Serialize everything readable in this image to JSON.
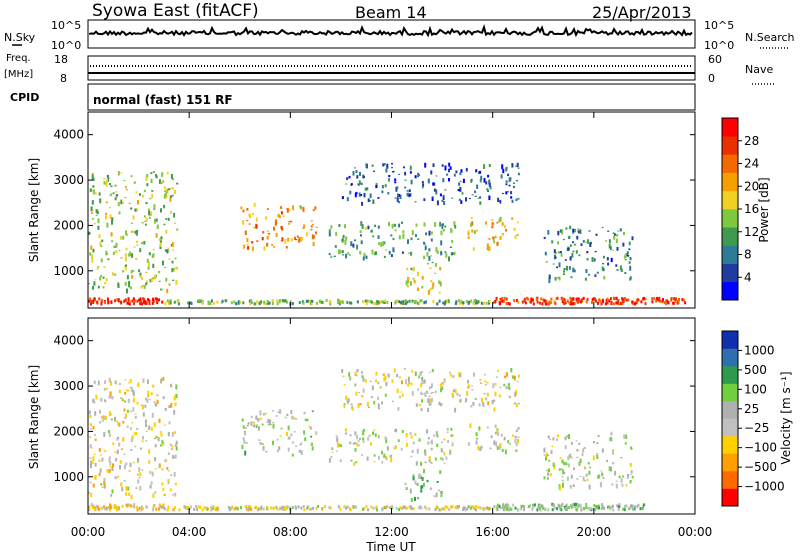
{
  "header": {
    "station": "Syowa East (fitACF)",
    "beam": "Beam 14",
    "date": "25/Apr/2013"
  },
  "status_panels": {
    "nsky_label": "N.Sky",
    "nsearch_label": "N.Search",
    "nsky_ticks": [
      "10^5",
      "10^0"
    ],
    "nsearch_ticks": [
      "10^5",
      "10^0"
    ],
    "freq_label": "Freq.",
    "freq_unit": "[MHz]",
    "freq_ticks": [
      "18",
      "8"
    ],
    "nave_label": "Nave",
    "nave_ticks": [
      "60",
      "0"
    ],
    "cpid_label": "CPID",
    "cpid_value": "normal (fast) 151 RF"
  },
  "colors": {
    "power_scale": [
      "#0000ff",
      "#203c9e",
      "#2e7b96",
      "#3f9a4e",
      "#7fc840",
      "#f0d020",
      "#f6a000",
      "#f46a00",
      "#e83000",
      "#ff0000"
    ],
    "velocity_scale": [
      "#ff0000",
      "#ff6a00",
      "#ffa000",
      "#ffd000",
      "#c0c0c0",
      "#b0b0b0",
      "#70d040",
      "#2e9a4e",
      "#2e6fae",
      "#1030b0"
    ]
  },
  "chart_data": [
    {
      "type": "heatmap",
      "name": "power-panel",
      "ylabel": "Slant Range [km]",
      "yticks": [
        "4000",
        "3000",
        "2000",
        "1000"
      ],
      "ylim": [
        180,
        4500
      ],
      "xticks": [
        "00:00",
        "04:00",
        "08:00",
        "12:00",
        "16:00",
        "20:00",
        "00:00"
      ],
      "colorbar_label": "Power [dB]",
      "colorbar_ticks": [
        "28",
        "24",
        "20",
        "16",
        "12",
        "8",
        "4"
      ],
      "zlim": [
        0,
        30
      ],
      "regions": [
        {
          "t": [
            0.0,
            3.0
          ],
          "r": [
            300,
            420
          ],
          "z": 28
        },
        {
          "t": [
            16.0,
            23.6
          ],
          "r": [
            300,
            430
          ],
          "z": 26
        },
        {
          "t": [
            3.0,
            16.0
          ],
          "r": [
            300,
            380
          ],
          "z": 12
        },
        {
          "t": [
            6.0,
            9.0
          ],
          "r": [
            1500,
            2500
          ],
          "z": 20
        },
        {
          "t": [
            9.5,
            14.5
          ],
          "r": [
            1300,
            2100
          ],
          "z": 10
        },
        {
          "t": [
            15.0,
            17.0
          ],
          "r": [
            1500,
            2200
          ],
          "z": 18
        },
        {
          "t": [
            18.0,
            21.5
          ],
          "r": [
            800,
            2000
          ],
          "z": 8
        },
        {
          "t": [
            0.0,
            3.5
          ],
          "r": [
            600,
            3200
          ],
          "z": 14
        },
        {
          "t": [
            10.0,
            17.0
          ],
          "r": [
            2500,
            3400
          ],
          "z": 6
        },
        {
          "t": [
            12.5,
            14.0
          ],
          "r": [
            500,
            1200
          ],
          "z": 16
        }
      ]
    },
    {
      "type": "heatmap",
      "name": "velocity-panel",
      "ylabel": "Slant Range [km]",
      "yticks": [
        "4000",
        "3000",
        "2000",
        "1000"
      ],
      "ylim": [
        180,
        4500
      ],
      "xlabel": "Time UT",
      "xticks": [
        "00:00",
        "04:00",
        "08:00",
        "12:00",
        "16:00",
        "20:00",
        "00:00"
      ],
      "colorbar_label": "Velocity [m s⁻¹]",
      "colorbar_ticks": [
        "1000",
        "500",
        "100",
        "25",
        "−25",
        "−100",
        "−500",
        "−1000"
      ],
      "zlim": [
        -1200,
        1200
      ],
      "regions": [
        {
          "t": [
            0.0,
            3.0
          ],
          "r": [
            300,
            420
          ],
          "z": -300
        },
        {
          "t": [
            16.0,
            22.0
          ],
          "r": [
            300,
            430
          ],
          "z": 200
        },
        {
          "t": [
            3.0,
            16.0
          ],
          "r": [
            300,
            380
          ],
          "z": -120
        },
        {
          "t": [
            6.0,
            9.0
          ],
          "r": [
            1500,
            2500
          ],
          "z": 120
        },
        {
          "t": [
            9.5,
            14.5
          ],
          "r": [
            1300,
            2100
          ],
          "z": 0
        },
        {
          "t": [
            15.0,
            17.0
          ],
          "r": [
            1500,
            2200
          ],
          "z": 60
        },
        {
          "t": [
            18.0,
            21.5
          ],
          "r": [
            800,
            2000
          ],
          "z": 50
        },
        {
          "t": [
            0.0,
            3.5
          ],
          "r": [
            600,
            3200
          ],
          "z": -150
        },
        {
          "t": [
            10.0,
            17.0
          ],
          "r": [
            2500,
            3400
          ],
          "z": -80
        },
        {
          "t": [
            12.5,
            14.0
          ],
          "r": [
            500,
            1200
          ],
          "z": 300
        }
      ]
    }
  ]
}
